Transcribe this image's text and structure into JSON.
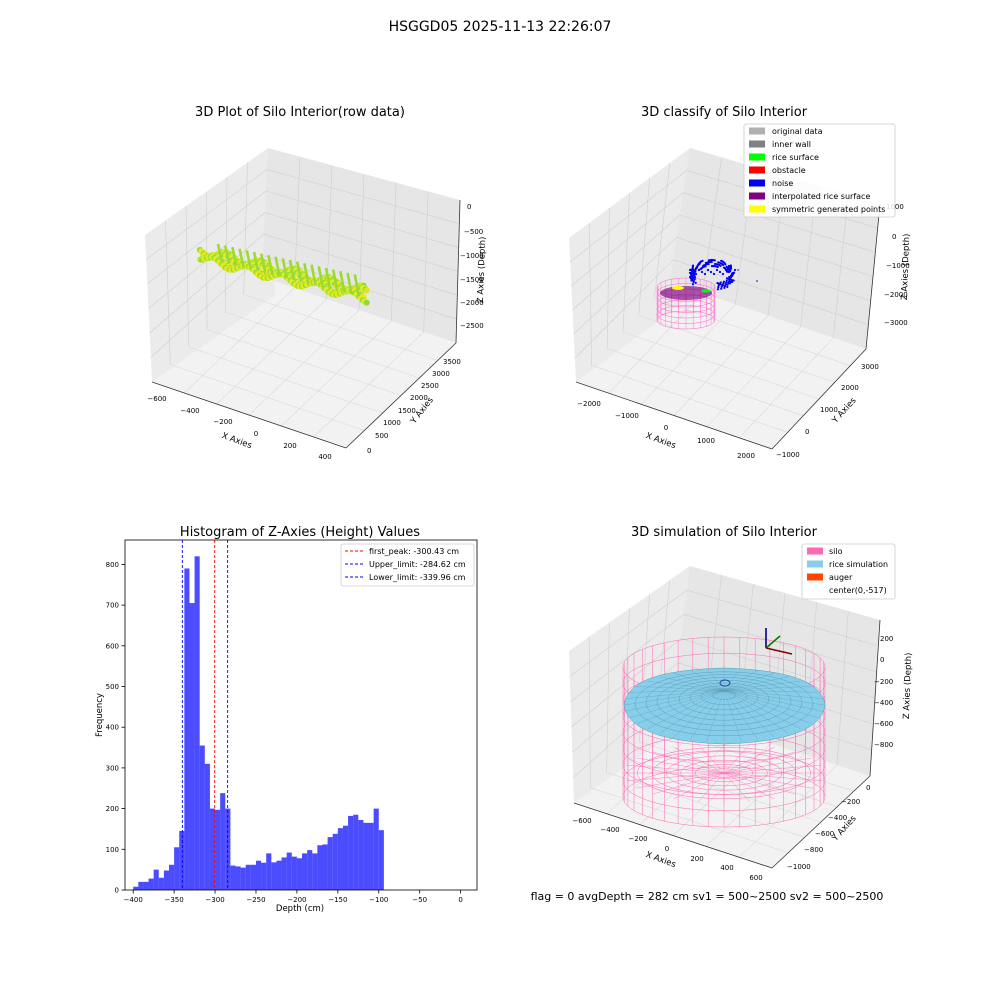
{
  "figure": {
    "suptitle": "HSGGD05 2025-11-13 22:26:07",
    "status_line": "flag = 0     avgDepth = 282 cm  sv1 = 500~2500  sv2 = 500~2500"
  },
  "chart_data": [
    {
      "type": "scatter",
      "projection": "3d",
      "title": "3D Plot of Silo Interior(row data)",
      "xlabel": "X Axies",
      "ylabel": "Y Axies",
      "zlabel": "Z Axies (Depth)",
      "x_ticks": [
        "−600",
        "−400",
        "−200",
        "0",
        "200",
        "400"
      ],
      "y_ticks": [
        "0",
        "500",
        "1000",
        "1500",
        "2000",
        "2500",
        "3000",
        "3500"
      ],
      "z_ticks": [
        "0",
        "−500",
        "−1000",
        "−1500",
        "−2000",
        "−2500"
      ],
      "colormap": "yellow-green by depth",
      "colors": {
        "low": "#7fd93a",
        "high": "#f0ec1c"
      }
    },
    {
      "type": "scatter",
      "projection": "3d",
      "title": "3D classify of Silo Interior",
      "xlabel": "X Axies",
      "ylabel": "Y Axies",
      "zlabel": "Z Axies (Depth)",
      "x_ticks": [
        "−2000",
        "−1000",
        "0",
        "1000",
        "2000"
      ],
      "y_ticks": [
        "−1000",
        "0",
        "1000",
        "2000",
        "3000"
      ],
      "z_ticks": [
        "1000",
        "0",
        "−1000",
        "−2000",
        "−3000"
      ],
      "legend_position": "top-right",
      "legend": [
        {
          "label": "original data",
          "color": "#b0b0b0"
        },
        {
          "label": "inner wall",
          "color": "#808080"
        },
        {
          "label": "rice surface",
          "color": "#00ff00"
        },
        {
          "label": "obstacle",
          "color": "#ff0000"
        },
        {
          "label": "noise",
          "color": "#0000ee"
        },
        {
          "label": "interpolated rice surface",
          "color": "#800080"
        },
        {
          "label": "symmetric generated points",
          "color": "#ffff00"
        }
      ]
    },
    {
      "type": "bar",
      "subtype": "histogram",
      "title": "Histogram of Z-Axies (Height) Values",
      "xlabel": "Depth (cm)",
      "ylabel": "Frequency",
      "xlim": [
        -410,
        20
      ],
      "ylim": [
        0,
        860
      ],
      "bin_start": -400,
      "bin_width": 6.25,
      "bar_color": "#0000ff",
      "values": [
        8,
        20,
        20,
        28,
        50,
        30,
        48,
        62,
        105,
        145,
        790,
        705,
        820,
        355,
        310,
        200,
        197,
        238,
        200,
        60,
        58,
        55,
        62,
        62,
        72,
        67,
        90,
        68,
        72,
        80,
        92,
        82,
        78,
        90,
        98,
        90,
        110,
        112,
        130,
        138,
        152,
        158,
        182,
        185,
        172,
        165,
        165,
        200,
        147
      ],
      "x_ticks": [
        -400,
        -350,
        -300,
        -250,
        -200,
        -150,
        -100,
        -50,
        0
      ],
      "y_ticks": [
        0,
        100,
        200,
        300,
        400,
        500,
        600,
        700,
        800
      ],
      "x_tick_labels": [
        "−400",
        "−350",
        "−300",
        "−250",
        "−200",
        "−150",
        "−100",
        "−50",
        "0"
      ],
      "y_tick_labels": [
        "0",
        "100",
        "200",
        "300",
        "400",
        "500",
        "600",
        "700",
        "800"
      ],
      "vlines": [
        {
          "x": -300.43,
          "label": "first_peak: -300.43 cm",
          "color": "#ff0000"
        },
        {
          "x": -284.62,
          "label": "Upper_limit: -284.62 cm",
          "color": "#0000ff"
        },
        {
          "x": -339.96,
          "label": "Lower_limit: -339.96 cm",
          "color": "#0000ff"
        }
      ],
      "legend_position": "top-right"
    },
    {
      "type": "scatter",
      "projection": "3d",
      "title": "3D simulation of Silo Interior",
      "xlabel": "X Axies",
      "ylabel": "Y Axies",
      "zlabel": "Z Axies (Depth)",
      "x_ticks": [
        "−600",
        "−400",
        "−200",
        "0",
        "200",
        "400",
        "600"
      ],
      "y_ticks": [
        "−1000",
        "−800",
        "−600",
        "−400",
        "−200",
        "0"
      ],
      "z_ticks": [
        "200",
        "0",
        "−200",
        "−400",
        "−600",
        "−800"
      ],
      "legend_position": "top-right",
      "legend": [
        {
          "label": "silo",
          "color": "#ff69b4"
        },
        {
          "label": "rice simulation",
          "color": "#87ceeb"
        },
        {
          "label": "auger",
          "color": "#ff4500"
        },
        {
          "label": "center(0,-517)",
          "color": ""
        }
      ]
    }
  ]
}
